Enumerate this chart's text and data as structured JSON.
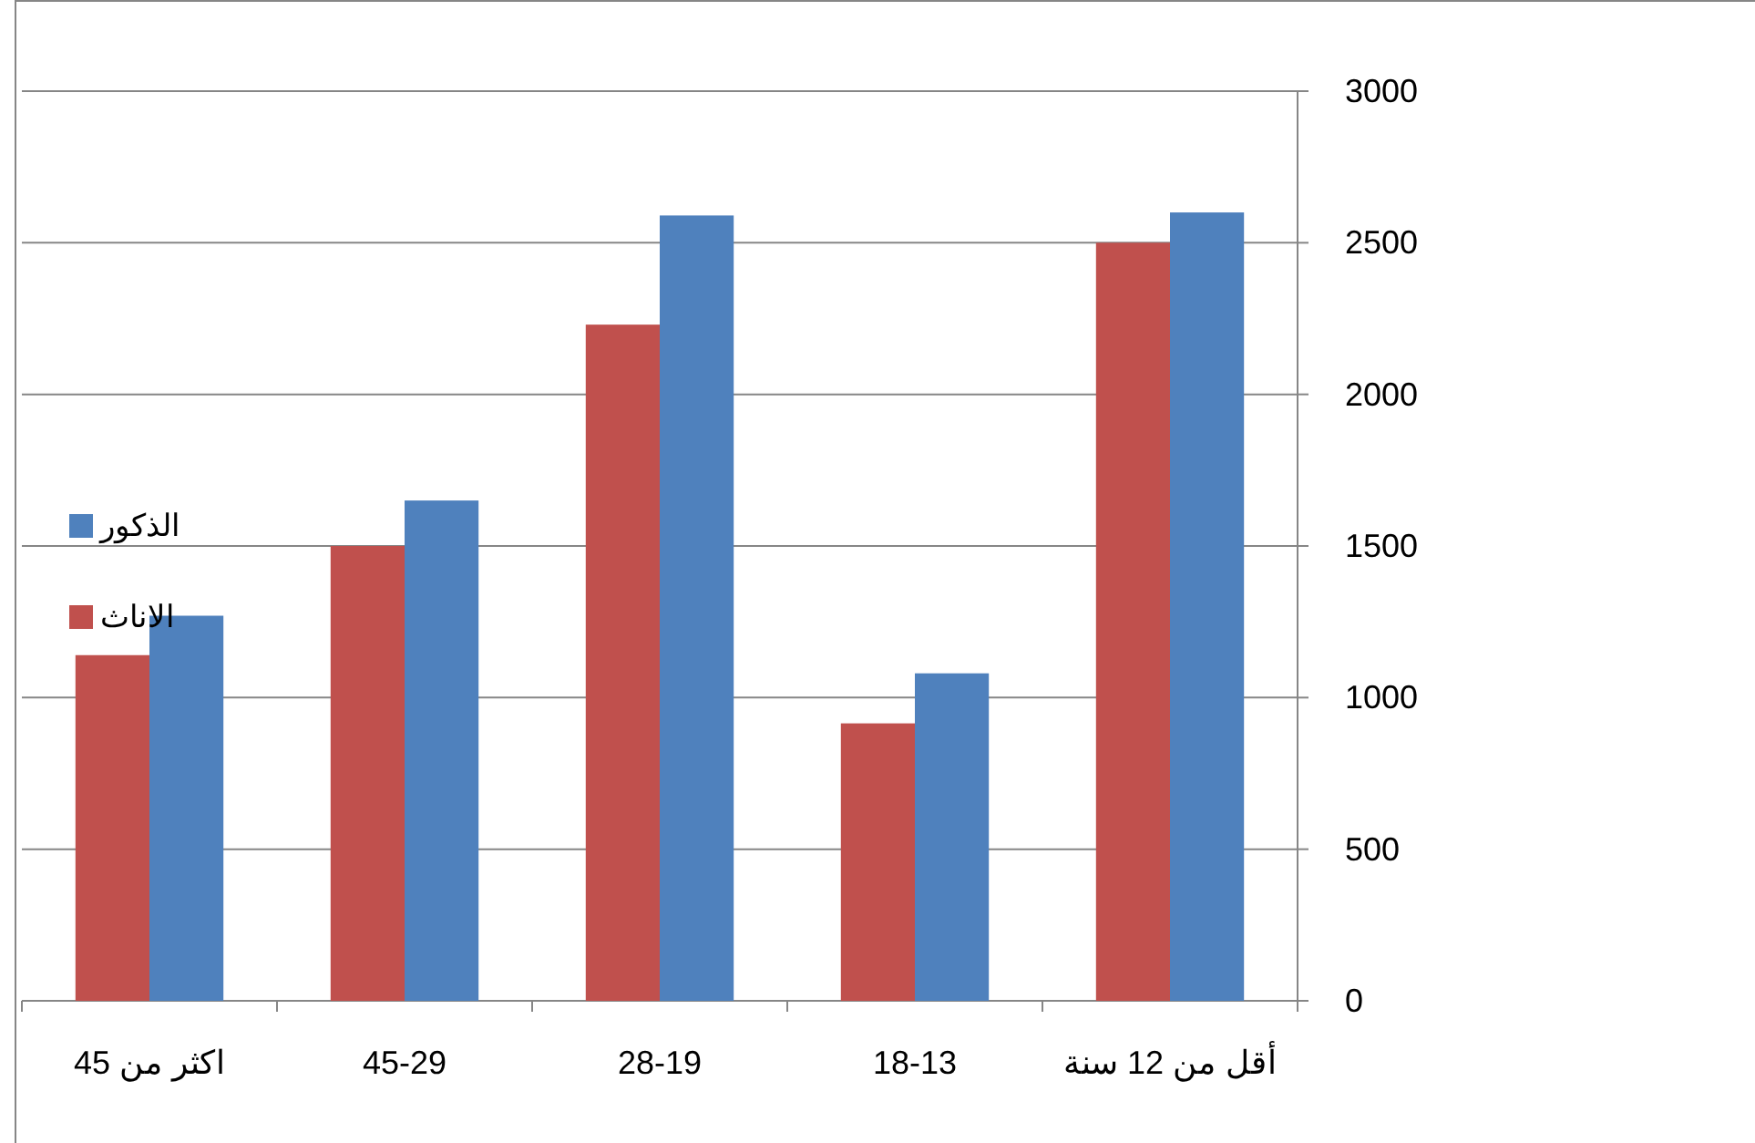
{
  "chart_data": {
    "type": "bar",
    "categories": [
      "اكثر من 45",
      "45-29",
      "28-19",
      "18-13",
      "أقل من 12 سنة"
    ],
    "series": [
      {
        "name": "الاناث",
        "color": "#c0504d",
        "values": [
          1140,
          1500,
          2230,
          915,
          2500
        ]
      },
      {
        "name": "الذكور",
        "color": "#4f81bd",
        "values": [
          1270,
          1650,
          2590,
          1080,
          2600
        ]
      }
    ],
    "ylim": [
      0,
      3000
    ],
    "yticks": [
      0,
      500,
      1000,
      1500,
      2000,
      2500,
      3000
    ],
    "grid": "y",
    "legend": "left"
  }
}
